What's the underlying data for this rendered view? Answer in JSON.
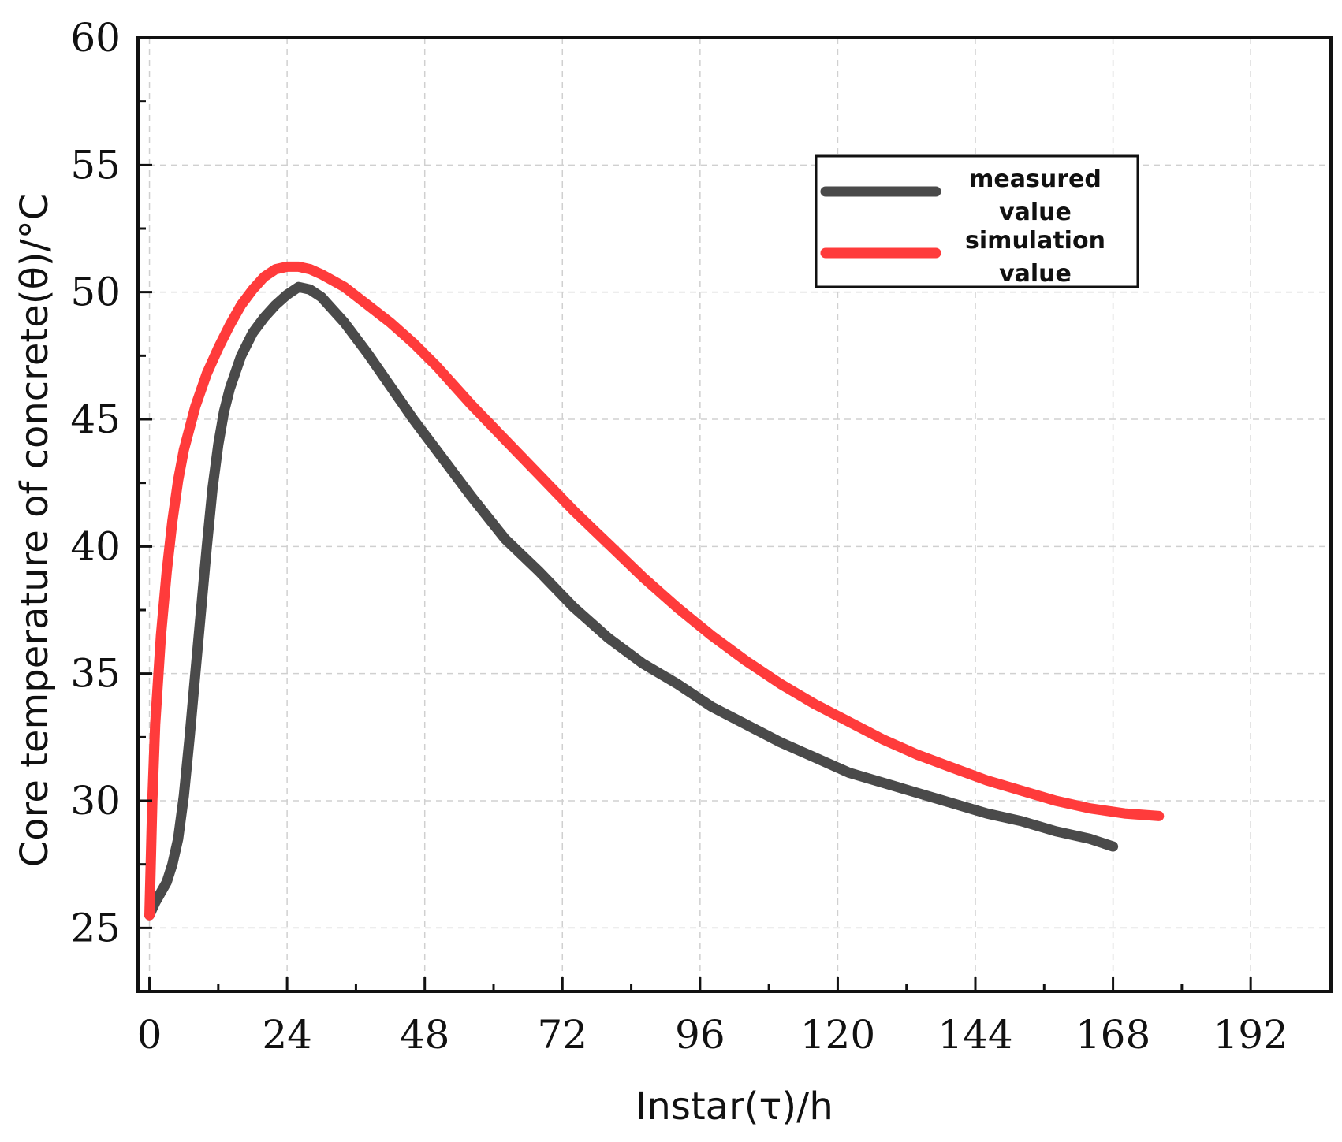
{
  "chart_data": {
    "type": "line",
    "title": "",
    "xlabel": "Instar(τ)/h",
    "ylabel": "Core temperature of concrete(θ)/°C",
    "xlim": [
      -2,
      206
    ],
    "ylim": [
      22.5,
      60
    ],
    "xticks": [
      0,
      24,
      48,
      72,
      96,
      120,
      144,
      168,
      192
    ],
    "yticks": [
      25,
      30,
      35,
      40,
      45,
      50,
      55,
      60
    ],
    "grid": true,
    "legend_position": "top-right",
    "series": [
      {
        "name": "measured value",
        "legend_lines": [
          "measured",
          "value"
        ],
        "color": "#4a4a4a",
        "x": [
          0,
          1,
          2,
          3,
          4,
          5,
          6,
          7,
          8,
          9,
          10,
          11,
          12,
          13,
          14,
          16,
          18,
          20,
          22,
          24,
          26,
          28,
          30,
          34,
          38,
          42,
          46,
          50,
          56,
          62,
          68,
          74,
          80,
          86,
          92,
          98,
          104,
          110,
          116,
          122,
          128,
          134,
          140,
          146,
          152,
          158,
          164,
          168
        ],
        "y": [
          25.5,
          26.0,
          26.4,
          26.8,
          27.5,
          28.5,
          30.2,
          32.5,
          35.0,
          37.5,
          40.0,
          42.3,
          44.0,
          45.3,
          46.2,
          47.5,
          48.4,
          49.0,
          49.5,
          49.9,
          50.2,
          50.1,
          49.8,
          48.8,
          47.6,
          46.3,
          45.0,
          43.8,
          42.0,
          40.3,
          39.0,
          37.6,
          36.4,
          35.4,
          34.6,
          33.7,
          33.0,
          32.3,
          31.7,
          31.1,
          30.7,
          30.3,
          29.9,
          29.5,
          29.2,
          28.8,
          28.5,
          28.2
        ]
      },
      {
        "name": "simulation value",
        "legend_lines": [
          "simulation",
          "value"
        ],
        "color": "#ff3b3b",
        "x": [
          0,
          0.5,
          1,
          2,
          3,
          4,
          5,
          6,
          8,
          10,
          12,
          14,
          16,
          18,
          20,
          22,
          24,
          26,
          28,
          30,
          34,
          38,
          42,
          46,
          50,
          56,
          62,
          68,
          74,
          80,
          86,
          92,
          98,
          104,
          110,
          116,
          122,
          128,
          134,
          140,
          146,
          152,
          158,
          164,
          170,
          176
        ],
        "y": [
          25.5,
          30.0,
          33.0,
          36.5,
          39.0,
          41.0,
          42.6,
          43.8,
          45.5,
          46.8,
          47.8,
          48.7,
          49.5,
          50.1,
          50.6,
          50.9,
          51.0,
          51.0,
          50.9,
          50.7,
          50.2,
          49.5,
          48.8,
          48.0,
          47.1,
          45.6,
          44.2,
          42.8,
          41.4,
          40.1,
          38.8,
          37.6,
          36.5,
          35.5,
          34.6,
          33.8,
          33.1,
          32.4,
          31.8,
          31.3,
          30.8,
          30.4,
          30.0,
          29.7,
          29.5,
          29.4
        ]
      }
    ]
  }
}
